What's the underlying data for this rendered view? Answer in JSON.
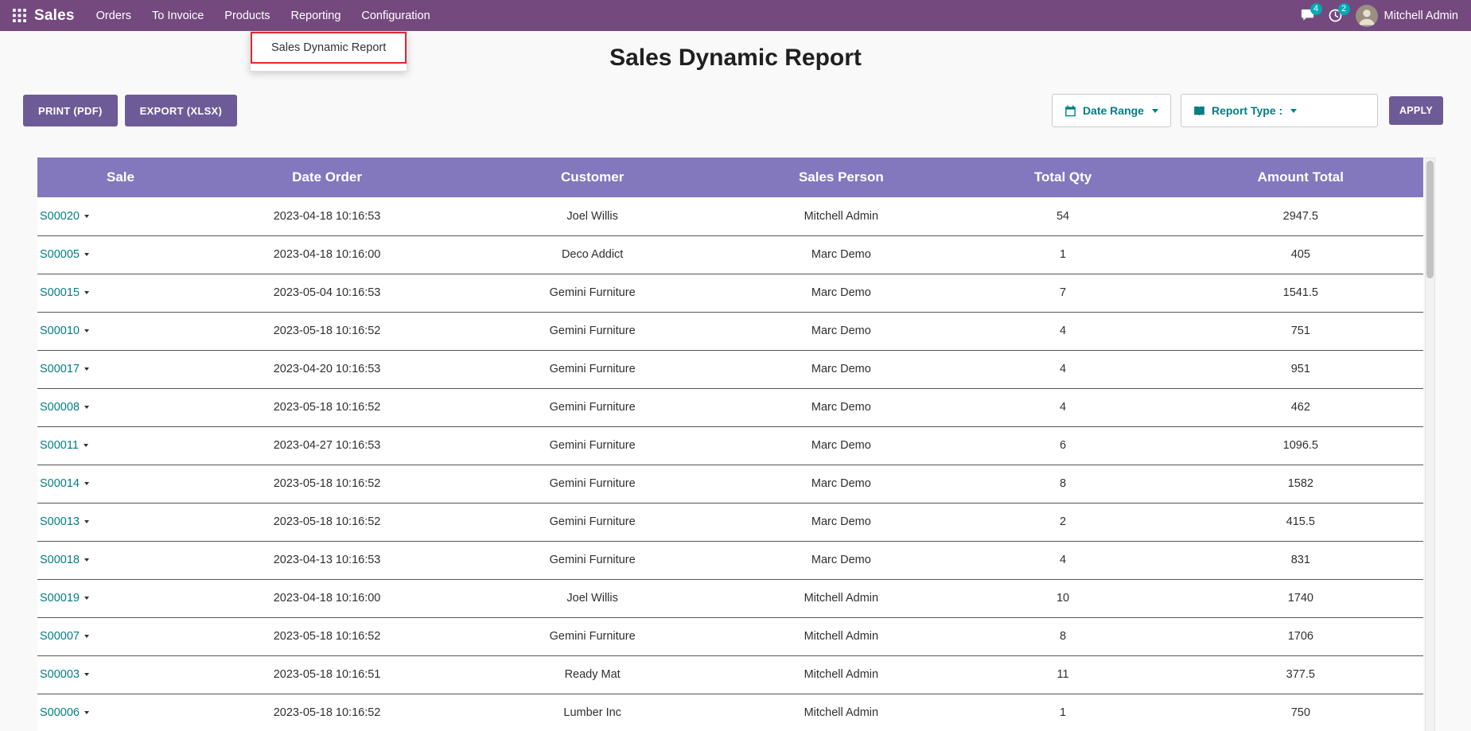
{
  "colors": {
    "navbar": "#74497e",
    "button": "#6d5b97",
    "table_header": "#8378bd",
    "link_teal": "#017e84",
    "badge_teal": "#00a9b5",
    "highlight_red": "#e0282e"
  },
  "navbar": {
    "brand": "Sales",
    "menu": [
      "Orders",
      "To Invoice",
      "Products",
      "Reporting",
      "Configuration"
    ],
    "messages_badge": "4",
    "activities_badge": "2",
    "user_name": "Mitchell Admin"
  },
  "reporting_dropdown": {
    "items": [
      "Sales Dynamic Report"
    ]
  },
  "page": {
    "title": "Sales Dynamic Report"
  },
  "toolbar": {
    "print_label": "PRINT (PDF)",
    "export_label": "EXPORT (XLSX)",
    "date_range_label": "Date Range",
    "report_type_label": "Report Type :",
    "apply_label": "APPLY"
  },
  "table": {
    "columns": [
      "Sale",
      "Date Order",
      "Customer",
      "Sales Person",
      "Total Qty",
      "Amount Total"
    ],
    "rows": [
      {
        "sale": "S00020",
        "date_order": "2023-04-18 10:16:53",
        "customer": "Joel Willis",
        "sales_person": "Mitchell Admin",
        "total_qty": "54",
        "amount_total": "2947.5"
      },
      {
        "sale": "S00005",
        "date_order": "2023-04-18 10:16:00",
        "customer": "Deco Addict",
        "sales_person": "Marc Demo",
        "total_qty": "1",
        "amount_total": "405"
      },
      {
        "sale": "S00015",
        "date_order": "2023-05-04 10:16:53",
        "customer": "Gemini Furniture",
        "sales_person": "Marc Demo",
        "total_qty": "7",
        "amount_total": "1541.5"
      },
      {
        "sale": "S00010",
        "date_order": "2023-05-18 10:16:52",
        "customer": "Gemini Furniture",
        "sales_person": "Marc Demo",
        "total_qty": "4",
        "amount_total": "751"
      },
      {
        "sale": "S00017",
        "date_order": "2023-04-20 10:16:53",
        "customer": "Gemini Furniture",
        "sales_person": "Marc Demo",
        "total_qty": "4",
        "amount_total": "951"
      },
      {
        "sale": "S00008",
        "date_order": "2023-05-18 10:16:52",
        "customer": "Gemini Furniture",
        "sales_person": "Marc Demo",
        "total_qty": "4",
        "amount_total": "462"
      },
      {
        "sale": "S00011",
        "date_order": "2023-04-27 10:16:53",
        "customer": "Gemini Furniture",
        "sales_person": "Marc Demo",
        "total_qty": "6",
        "amount_total": "1096.5"
      },
      {
        "sale": "S00014",
        "date_order": "2023-05-18 10:16:52",
        "customer": "Gemini Furniture",
        "sales_person": "Marc Demo",
        "total_qty": "8",
        "amount_total": "1582"
      },
      {
        "sale": "S00013",
        "date_order": "2023-05-18 10:16:52",
        "customer": "Gemini Furniture",
        "sales_person": "Marc Demo",
        "total_qty": "2",
        "amount_total": "415.5"
      },
      {
        "sale": "S00018",
        "date_order": "2023-04-13 10:16:53",
        "customer": "Gemini Furniture",
        "sales_person": "Marc Demo",
        "total_qty": "4",
        "amount_total": "831"
      },
      {
        "sale": "S00019",
        "date_order": "2023-04-18 10:16:00",
        "customer": "Joel Willis",
        "sales_person": "Mitchell Admin",
        "total_qty": "10",
        "amount_total": "1740"
      },
      {
        "sale": "S00007",
        "date_order": "2023-05-18 10:16:52",
        "customer": "Gemini Furniture",
        "sales_person": "Mitchell Admin",
        "total_qty": "8",
        "amount_total": "1706"
      },
      {
        "sale": "S00003",
        "date_order": "2023-05-18 10:16:51",
        "customer": "Ready Mat",
        "sales_person": "Mitchell Admin",
        "total_qty": "11",
        "amount_total": "377.5"
      },
      {
        "sale": "S00006",
        "date_order": "2023-05-18 10:16:52",
        "customer": "Lumber Inc",
        "sales_person": "Mitchell Admin",
        "total_qty": "1",
        "amount_total": "750"
      }
    ]
  }
}
